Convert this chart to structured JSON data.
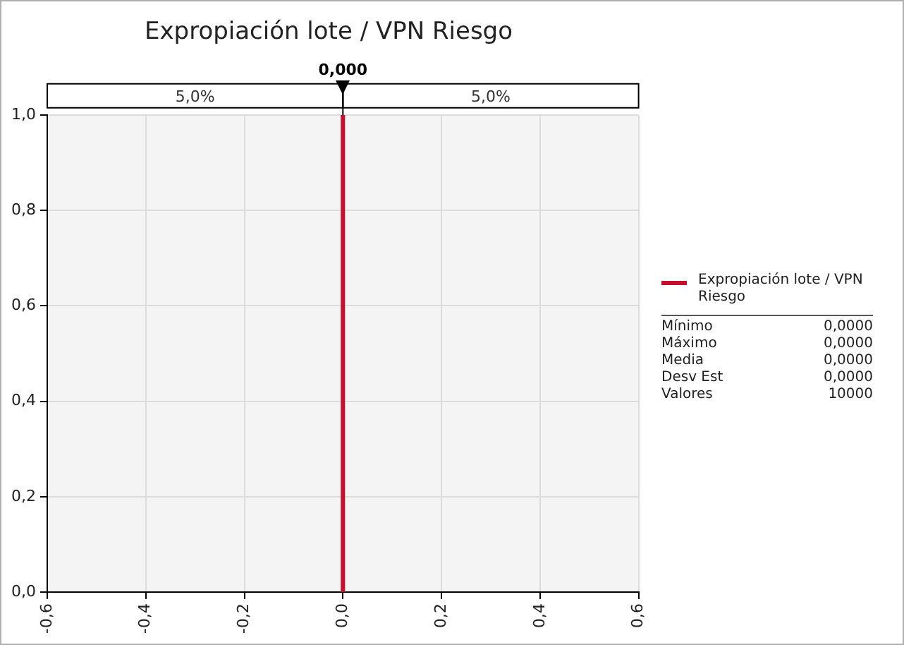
{
  "chart_data": {
    "type": "line",
    "title": "Expropiación lote / VPN Riesgo",
    "series": [
      {
        "name": "Expropiación lote / VPN Riesgo",
        "color": "#c8102e",
        "x": [
          0,
          0
        ],
        "values": [
          0,
          1
        ]
      }
    ],
    "xlim": [
      -0.6,
      0.6
    ],
    "xticks": [
      {
        "value": -0.6,
        "label": "-0,6"
      },
      {
        "value": -0.4,
        "label": "-0,4"
      },
      {
        "value": -0.2,
        "label": "-0,2"
      },
      {
        "value": 0,
        "label": "0,0"
      },
      {
        "value": 0.2,
        "label": "0,2"
      },
      {
        "value": 0.4,
        "label": "0,4"
      },
      {
        "value": 0.6,
        "label": "0,6"
      }
    ],
    "ylim": [
      0,
      1
    ],
    "yticks": [
      {
        "value": 0,
        "label": "0,0"
      },
      {
        "value": 0.2,
        "label": "0,2"
      },
      {
        "value": 0.4,
        "label": "0,4"
      },
      {
        "value": 0.6,
        "label": "0,6"
      },
      {
        "value": 0.8,
        "label": "0,8"
      },
      {
        "value": 1,
        "label": "1,0"
      }
    ],
    "grid": true,
    "legend": "right",
    "marker": "none",
    "line_style": "solid",
    "ref_lines": [
      {
        "axis": "x",
        "value": 0,
        "label": "0,000",
        "color": "#000000"
      }
    ],
    "annotations": [
      "5,0%",
      "5,0%",
      "Mínimo 0,0000",
      "Máximo 0,0000",
      "Media 0,0000",
      "Desv Est 0,0000",
      "Valores 10000"
    ]
  }
}
